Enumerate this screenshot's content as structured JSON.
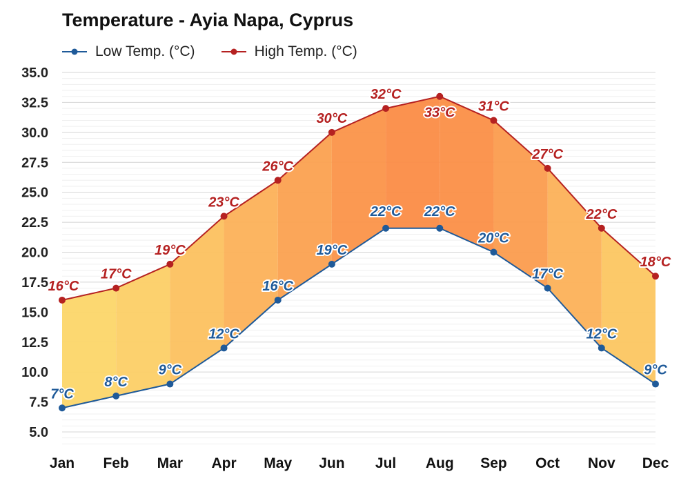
{
  "chart_data": {
    "type": "line",
    "title": "Temperature - Ayia Napa, Cyprus",
    "categories": [
      "Jan",
      "Feb",
      "Mar",
      "Apr",
      "May",
      "Jun",
      "Jul",
      "Aug",
      "Sep",
      "Oct",
      "Nov",
      "Dec"
    ],
    "series": [
      {
        "name": "Low Temp. (°C)",
        "color": "#1f5a99",
        "values": [
          7,
          8,
          9,
          12,
          16,
          19,
          22,
          22,
          20,
          17,
          12,
          9
        ],
        "labels": [
          "7°C",
          "8°C",
          "9°C",
          "12°C",
          "16°C",
          "19°C",
          "22°C",
          "22°C",
          "20°C",
          "17°C",
          "12°C",
          "9°C"
        ]
      },
      {
        "name": "High Temp. (°C)",
        "color": "#b52121",
        "values": [
          16,
          17,
          19,
          23,
          26,
          30,
          32,
          33,
          31,
          27,
          22,
          18
        ],
        "labels": [
          "16°C",
          "17°C",
          "19°C",
          "23°C",
          "26°C",
          "30°C",
          "32°C",
          "33°C",
          "31°C",
          "27°C",
          "22°C",
          "18°C"
        ]
      }
    ],
    "yticks": [
      "5.0",
      "7.5",
      "10.0",
      "12.5",
      "15.0",
      "17.5",
      "20.0",
      "22.5",
      "25.0",
      "27.5",
      "30.0",
      "32.5",
      "35.0"
    ],
    "ylim": [
      4,
      35
    ],
    "grid": true,
    "legend_position": "top-left",
    "fill_colors": {
      "cool": "#fcd86a",
      "hot": "#fb8a45"
    }
  }
}
